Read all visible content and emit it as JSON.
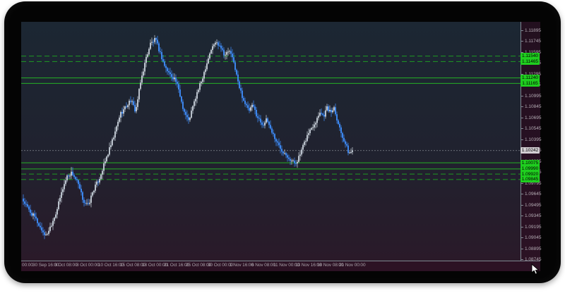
{
  "theme": {
    "frame_color": "#040404",
    "plot_bg_top": "#1c2733",
    "plot_bg_bottom": "#2a1a29",
    "panel_bg": "#271022",
    "axis_line_color": "#7f8791",
    "axis_text_color": "#b5adb5",
    "bull_candle_color": "#b9c1cb",
    "bear_candle_color": "#3c85ec",
    "solid_line_color": "#25b125",
    "dashed_line_color": "#1f9b22",
    "chip_green_bg": "#1fce1f",
    "chip_gray_bg": "#d2ced2",
    "bid_line_color": "#9a9fa7"
  },
  "chart_data": {
    "type": "candlestick",
    "title": "",
    "y_axis": {
      "side": "right",
      "top_value": 1.11895,
      "step": 0.0015,
      "tick_labels": [
        "1.11895",
        "1.11745",
        "1.11595",
        "1.11445",
        "1.11295",
        "1.11145",
        "1.10995",
        "1.10845",
        "1.10695",
        "1.10545",
        "1.10395",
        "1.10245",
        "1.10095",
        "1.09945",
        "1.09795",
        "1.09645",
        "1.09495",
        "1.09345",
        "1.09195",
        "1.09045",
        "1.08895",
        "1.08745"
      ]
    },
    "x_axis": {
      "tick_labels": [
        "00:00",
        "30 Sep 16:00",
        "3 Oct 08:00",
        "8 Oct 00:00",
        "10 Oct 16:00",
        "15 Oct 08:00",
        "18 Oct 00:00",
        "21 Oct 16:00",
        "25 Oct 08:00",
        "30 Oct 00:00",
        "1 Nov 16:00",
        "6 Nov 08:00",
        "11 Nov 00:00",
        "13 Nov 16:00",
        "18 Nov 08:00",
        "21 Nov 00:00"
      ]
    },
    "horizontal_lines": [
      {
        "price": 1.1154,
        "label": "1.11540",
        "style": "dashed"
      },
      {
        "price": 1.11465,
        "label": "1.11465",
        "style": "dashed"
      },
      {
        "price": 1.1124,
        "label": "1.11240",
        "style": "solid"
      },
      {
        "price": 1.11165,
        "label": "1.11165",
        "style": "solid"
      },
      {
        "price": 1.10075,
        "label": "1.10075",
        "style": "solid"
      },
      {
        "price": 1.0999,
        "label": "1.09990",
        "style": "solid"
      },
      {
        "price": 1.0992,
        "label": "1.09920",
        "style": "dashed"
      },
      {
        "price": 1.09845,
        "label": "1.09845",
        "style": "dashed"
      }
    ],
    "current_price": {
      "value": 1.10242,
      "label": "1.10242"
    },
    "price_path": [
      [
        33,
        1.0955
      ],
      [
        42,
        1.09408
      ],
      [
        50,
        1.09311
      ],
      [
        58,
        1.09166
      ],
      [
        65,
        1.09069
      ],
      [
        72,
        1.09214
      ],
      [
        80,
        1.09408
      ],
      [
        88,
        1.09698
      ],
      [
        95,
        1.09892
      ],
      [
        102,
        1.0994
      ],
      [
        110,
        1.09795
      ],
      [
        118,
        1.09553
      ],
      [
        125,
        1.09485
      ],
      [
        132,
        1.09698
      ],
      [
        140,
        1.09843
      ],
      [
        148,
        1.10066
      ],
      [
        155,
        1.1026
      ],
      [
        162,
        1.10453
      ],
      [
        170,
        1.10743
      ],
      [
        178,
        1.1084
      ],
      [
        185,
        1.10937
      ],
      [
        192,
        1.10782
      ],
      [
        200,
        1.11227
      ],
      [
        207,
        1.11518
      ],
      [
        213,
        1.11711
      ],
      [
        220,
        1.11769
      ],
      [
        227,
        1.11576
      ],
      [
        234,
        1.11382
      ],
      [
        241,
        1.11285
      ],
      [
        248,
        1.11227
      ],
      [
        254,
        1.11034
      ],
      [
        260,
        1.10801
      ],
      [
        267,
        1.10647
      ],
      [
        273,
        1.1084
      ],
      [
        279,
        1.11034
      ],
      [
        285,
        1.11189
      ],
      [
        292,
        1.11421
      ],
      [
        298,
        1.11614
      ],
      [
        305,
        1.1173
      ],
      [
        312,
        1.11692
      ],
      [
        318,
        1.11556
      ],
      [
        325,
        1.11614
      ],
      [
        332,
        1.11421
      ],
      [
        338,
        1.11131
      ],
      [
        345,
        1.10937
      ],
      [
        352,
        1.10782
      ],
      [
        358,
        1.1086
      ],
      [
        365,
        1.10695
      ],
      [
        372,
        1.10598
      ],
      [
        378,
        1.10666
      ],
      [
        385,
        1.10502
      ],
      [
        392,
        1.10356
      ],
      [
        398,
        1.1026
      ],
      [
        405,
        1.10202
      ],
      [
        412,
        1.10105
      ],
      [
        418,
        1.10066
      ],
      [
        424,
        1.10163
      ],
      [
        430,
        1.10318
      ],
      [
        436,
        1.10473
      ],
      [
        442,
        1.10569
      ],
      [
        448,
        1.10666
      ],
      [
        453,
        1.10782
      ],
      [
        458,
        1.10714
      ],
      [
        463,
        1.10831
      ],
      [
        468,
        1.10763
      ],
      [
        473,
        1.1084
      ],
      [
        478,
        1.10647
      ],
      [
        483,
        1.10492
      ],
      [
        489,
        1.10337
      ],
      [
        494,
        1.10202
      ],
      [
        499,
        1.1024
      ]
    ]
  },
  "cursor": {
    "name": "arrow-cursor"
  }
}
